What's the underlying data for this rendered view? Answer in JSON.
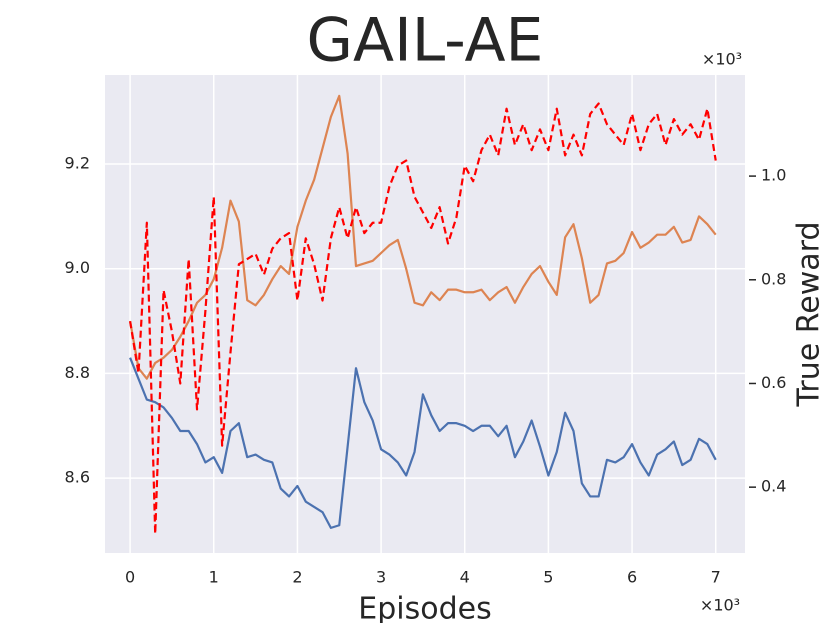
{
  "chart_data": {
    "type": "line",
    "title": "GAIL-AE",
    "xlabel": "Episodes",
    "y2label": "True Reward",
    "x_offset": "×10³",
    "y2_offset": "×10³",
    "x": [
      0,
      0.1,
      0.2,
      0.3,
      0.4,
      0.5,
      0.6,
      0.7,
      0.8,
      0.9,
      1.0,
      1.1,
      1.2,
      1.3,
      1.4,
      1.5,
      1.6,
      1.7,
      1.8,
      1.9,
      2.0,
      2.1,
      2.2,
      2.3,
      2.4,
      2.5,
      2.6,
      2.7,
      2.8,
      2.9,
      3.0,
      3.1,
      3.2,
      3.3,
      3.4,
      3.5,
      3.6,
      3.7,
      3.8,
      3.9,
      4.0,
      4.1,
      4.2,
      4.3,
      4.4,
      4.5,
      4.6,
      4.7,
      4.8,
      4.9,
      5.0,
      5.1,
      5.2,
      5.3,
      5.4,
      5.5,
      5.6,
      5.7,
      5.8,
      5.9,
      6.0,
      6.1,
      6.2,
      6.3,
      6.4,
      6.5,
      6.6,
      6.7,
      6.8,
      6.9,
      7.0
    ],
    "series": [
      {
        "color": "#4c72b0",
        "values": [
          8.83,
          8.79,
          8.75,
          8.745,
          8.735,
          8.715,
          8.69,
          8.69,
          8.665,
          8.63,
          8.64,
          8.61,
          8.69,
          8.705,
          8.64,
          8.645,
          8.635,
          8.63,
          8.58,
          8.565,
          8.585,
          8.555,
          8.545,
          8.535,
          8.505,
          8.51,
          8.66,
          8.81,
          8.745,
          8.71,
          8.655,
          8.645,
          8.63,
          8.605,
          8.65,
          8.76,
          8.72,
          8.69,
          8.705,
          8.705,
          8.7,
          8.69,
          8.7,
          8.7,
          8.68,
          8.7,
          8.64,
          8.67,
          8.71,
          8.66,
          8.605,
          8.65,
          8.725,
          8.69,
          8.59,
          8.565,
          8.565,
          8.635,
          8.63,
          8.64,
          8.665,
          8.63,
          8.605,
          8.645,
          8.655,
          8.67,
          8.625,
          8.635,
          8.675,
          8.665,
          8.635
        ]
      },
      {
        "color": "#dd8452",
        "values": [
          8.9,
          8.81,
          8.79,
          8.82,
          8.83,
          8.845,
          8.87,
          8.9,
          8.935,
          8.95,
          8.98,
          9.04,
          9.13,
          9.09,
          8.94,
          8.93,
          8.95,
          8.98,
          9.005,
          8.99,
          9.08,
          9.13,
          9.17,
          9.23,
          9.29,
          9.33,
          9.22,
          9.005,
          9.01,
          9.015,
          9.03,
          9.045,
          9.055,
          9.0,
          8.935,
          8.93,
          8.955,
          8.94,
          8.96,
          8.96,
          8.955,
          8.955,
          8.96,
          8.94,
          8.955,
          8.965,
          8.935,
          8.965,
          8.99,
          9.005,
          8.975,
          8.95,
          9.06,
          9.085,
          9.02,
          8.935,
          8.95,
          9.01,
          9.015,
          9.03,
          9.07,
          9.04,
          9.05,
          9.065,
          9.065,
          9.08,
          9.05,
          9.055,
          9.1,
          9.085,
          9.065
        ]
      },
      {
        "color": "#ff0000",
        "linestyle": "dashed",
        "axis": "y2",
        "values": [
          0.72,
          0.62,
          0.91,
          0.31,
          0.78,
          0.7,
          0.6,
          0.84,
          0.55,
          0.74,
          0.96,
          0.48,
          0.66,
          0.83,
          0.84,
          0.85,
          0.81,
          0.86,
          0.88,
          0.89,
          0.76,
          0.88,
          0.83,
          0.76,
          0.88,
          0.94,
          0.88,
          0.94,
          0.89,
          0.91,
          0.91,
          0.98,
          1.02,
          1.03,
          0.96,
          0.93,
          0.9,
          0.94,
          0.87,
          0.92,
          1.02,
          0.99,
          1.05,
          1.08,
          1.04,
          1.13,
          1.06,
          1.1,
          1.05,
          1.09,
          1.05,
          1.13,
          1.04,
          1.08,
          1.04,
          1.12,
          1.14,
          1.1,
          1.08,
          1.06,
          1.12,
          1.05,
          1.1,
          1.12,
          1.06,
          1.11,
          1.08,
          1.1,
          1.07,
          1.13,
          1.03
        ]
      }
    ],
    "xlim": [
      -0.3,
      7.35
    ],
    "xticks": [
      0,
      1,
      2,
      3,
      4,
      5,
      6,
      7
    ],
    "ylim": [
      8.457,
      9.37
    ],
    "yticks": [
      8.6,
      8.8,
      {
        "value": 9.0,
        "label": "9.0"
      },
      9.2
    ],
    "y2lim": [
      0.273,
      1.195
    ],
    "y2ticks": [
      0.4,
      0.6,
      0.8,
      {
        "value": 1.0,
        "label": "1.0"
      }
    ],
    "grid": true,
    "background": "#eaeaf2"
  }
}
